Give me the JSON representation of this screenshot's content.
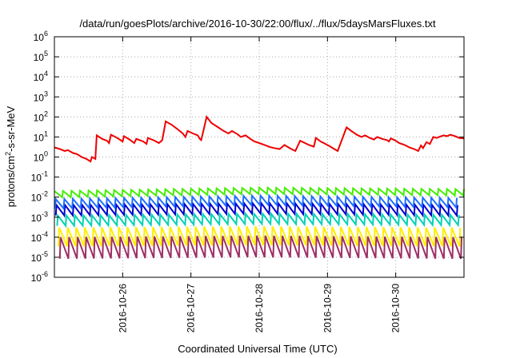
{
  "chart_data": {
    "type": "line",
    "title": "/data/run/goesPlots/archive/2016-10-30/22:00/flux/../flux/5daysMarsFluxes.txt",
    "xlabel": "Coordinated Universal Time (UTC)",
    "ylabel_prefix": "protons/cm",
    "ylabel_sup": "2",
    "ylabel_suffix": "-s-sr-MeV",
    "yscale": "log",
    "ylim_exp": [
      -6,
      6
    ],
    "y_ticks": [
      {
        "exp": "-6"
      },
      {
        "exp": "-5"
      },
      {
        "exp": "-4"
      },
      {
        "exp": "-3"
      },
      {
        "exp": "-2"
      },
      {
        "exp": "-1"
      },
      {
        "exp": "0"
      },
      {
        "exp": "1"
      },
      {
        "exp": "2"
      },
      {
        "exp": "3"
      },
      {
        "exp": "4"
      },
      {
        "exp": "5"
      },
      {
        "exp": "6"
      }
    ],
    "y_tick_base": "10",
    "xlim": [
      25.0,
      31.0
    ],
    "x_ticks": [
      {
        "value": 26,
        "label": "2016-10-26"
      },
      {
        "value": 27,
        "label": "2016-10-27"
      },
      {
        "value": 28,
        "label": "2016-10-28"
      },
      {
        "value": 29,
        "label": "2016-10-29"
      },
      {
        "value": 30,
        "label": "2016-10-30"
      }
    ],
    "grid": "dotted",
    "series": [
      {
        "color": "#ee0000",
        "points": [
          [
            25.0,
            3.0
          ],
          [
            25.08,
            2.5
          ],
          [
            25.15,
            2.0
          ],
          [
            25.2,
            2.2
          ],
          [
            25.27,
            1.6
          ],
          [
            25.33,
            1.4
          ],
          [
            25.4,
            1.0
          ],
          [
            25.47,
            0.8
          ],
          [
            25.53,
            0.6
          ],
          [
            25.55,
            1.0
          ],
          [
            25.6,
            0.8
          ],
          [
            25.62,
            12.0
          ],
          [
            25.7,
            8.0
          ],
          [
            25.77,
            6.5
          ],
          [
            25.8,
            5.0
          ],
          [
            25.83,
            13.0
          ],
          [
            25.92,
            9.0
          ],
          [
            26.0,
            6.0
          ],
          [
            26.02,
            11.0
          ],
          [
            26.1,
            7.5
          ],
          [
            26.17,
            5.0
          ],
          [
            26.2,
            8.0
          ],
          [
            26.3,
            6.0
          ],
          [
            26.35,
            4.5
          ],
          [
            26.37,
            9.0
          ],
          [
            26.47,
            6.5
          ],
          [
            26.53,
            5.0
          ],
          [
            26.58,
            7.0
          ],
          [
            26.63,
            60.0
          ],
          [
            26.72,
            40.0
          ],
          [
            26.8,
            25.0
          ],
          [
            26.88,
            15.0
          ],
          [
            26.92,
            10.0
          ],
          [
            26.95,
            20.0
          ],
          [
            27.03,
            15.0
          ],
          [
            27.1,
            12.0
          ],
          [
            27.13,
            8.0
          ],
          [
            27.15,
            7.0
          ],
          [
            27.23,
            100.0
          ],
          [
            27.3,
            50.0
          ],
          [
            27.4,
            30.0
          ],
          [
            27.48,
            20.0
          ],
          [
            27.55,
            15.0
          ],
          [
            27.6,
            20.0
          ],
          [
            27.68,
            14.0
          ],
          [
            27.73,
            10.0
          ],
          [
            27.8,
            12.0
          ],
          [
            27.87,
            8.0
          ],
          [
            27.93,
            6.0
          ],
          [
            28.0,
            5.0
          ],
          [
            28.08,
            4.0
          ],
          [
            28.15,
            3.2
          ],
          [
            28.22,
            2.8
          ],
          [
            28.3,
            2.5
          ],
          [
            28.37,
            4.0
          ],
          [
            28.43,
            3.0
          ],
          [
            28.47,
            2.5
          ],
          [
            28.53,
            2.0
          ],
          [
            28.6,
            6.5
          ],
          [
            28.67,
            5.0
          ],
          [
            28.73,
            4.0
          ],
          [
            28.8,
            3.3
          ],
          [
            28.83,
            9.0
          ],
          [
            28.9,
            6.0
          ],
          [
            28.97,
            4.5
          ],
          [
            29.03,
            3.5
          ],
          [
            29.1,
            2.5
          ],
          [
            29.15,
            2.0
          ],
          [
            29.28,
            30.0
          ],
          [
            29.35,
            20.0
          ],
          [
            29.43,
            13.0
          ],
          [
            29.5,
            10.0
          ],
          [
            29.55,
            12.0
          ],
          [
            29.62,
            9.0
          ],
          [
            29.68,
            7.5
          ],
          [
            29.73,
            10.0
          ],
          [
            29.8,
            8.0
          ],
          [
            29.87,
            7.0
          ],
          [
            29.9,
            6.0
          ],
          [
            29.93,
            8.5
          ],
          [
            30.0,
            6.5
          ],
          [
            30.05,
            5.0
          ],
          [
            30.13,
            4.0
          ],
          [
            30.2,
            3.0
          ],
          [
            30.27,
            2.5
          ],
          [
            30.33,
            2.0
          ],
          [
            30.37,
            3.8
          ],
          [
            30.4,
            2.8
          ],
          [
            30.45,
            5.5
          ],
          [
            30.5,
            4.5
          ],
          [
            30.55,
            10.0
          ],
          [
            30.6,
            9.0
          ],
          [
            30.65,
            10.5
          ],
          [
            30.7,
            12.0
          ],
          [
            30.75,
            11.0
          ],
          [
            30.8,
            13.0
          ],
          [
            30.87,
            11.0
          ],
          [
            30.93,
            9.0
          ],
          [
            31.0,
            8.5
          ]
        ]
      },
      {
        "color": "#44ee00",
        "peak": 0.025,
        "trough": 0.012,
        "offset": 0.0,
        "trend": [
          [
            25,
            0.02
          ],
          [
            28,
            0.03
          ],
          [
            31,
            0.025
          ]
        ]
      },
      {
        "color": "#1f6fff",
        "peak": 0.009,
        "trough": 0.003,
        "offset": 0.02,
        "trend": [
          [
            25,
            0.008
          ],
          [
            28,
            0.012
          ],
          [
            31,
            0.009
          ]
        ]
      },
      {
        "color": "#0000cc",
        "peak": 0.004,
        "trough": 0.0012,
        "offset": 0.03,
        "trend": [
          [
            25,
            0.004
          ],
          [
            28,
            0.005
          ],
          [
            31,
            0.004
          ]
        ]
      },
      {
        "color": "#00d2b4",
        "peak": 0.0013,
        "trough": 0.0004,
        "offset": 0.05,
        "trend": [
          [
            25,
            0.0012
          ],
          [
            28,
            0.0015
          ],
          [
            31,
            0.0013
          ]
        ]
      },
      {
        "color": "#ffee00",
        "peak": 0.00035,
        "trough": 4e-05,
        "offset": 0.07,
        "trend": [
          [
            25,
            0.0003
          ],
          [
            28,
            0.00035
          ],
          [
            31,
            0.0003
          ]
        ]
      },
      {
        "color": "#9e2f66",
        "peak": 0.00012,
        "trough": 1e-05,
        "offset": 0.09,
        "trend": [
          [
            25,
            0.0001
          ],
          [
            28,
            0.00012
          ],
          [
            31,
            0.0001
          ]
        ]
      }
    ]
  }
}
